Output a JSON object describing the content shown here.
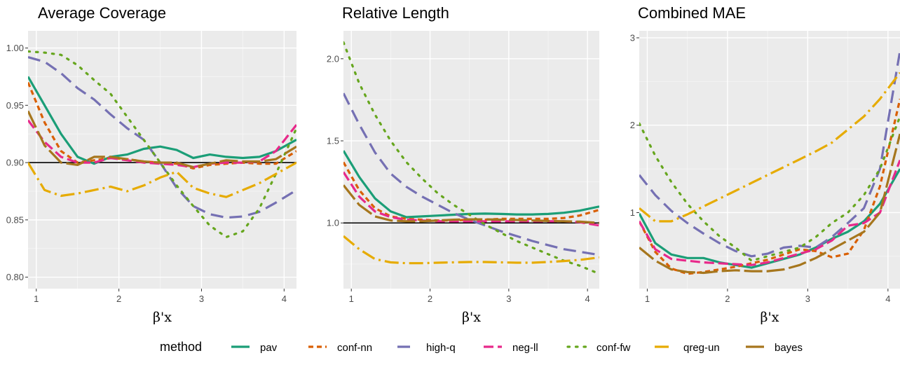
{
  "legend": {
    "title": "method",
    "position": "bottom"
  },
  "styles": {
    "pav": {
      "color": "#1b9e77",
      "dash": "none"
    },
    "conf-nn": {
      "color": "#d95f02",
      "dash": "7,5"
    },
    "high-q": {
      "color": "#7570b3",
      "dash": "18,9"
    },
    "neg-ll": {
      "color": "#e7298a",
      "dash": "14,6"
    },
    "conf-fw": {
      "color": "#66a61e",
      "dash": "2.5,9"
    },
    "qreg-un": {
      "color": "#e6ab02",
      "dash": "20,6,3,6"
    },
    "bayes": {
      "color": "#a6761d",
      "dash": "26,6"
    }
  },
  "chart_data": [
    {
      "type": "line",
      "title": "Average Coverage",
      "xlabel": "β'x",
      "ylabel": "",
      "xlim": [
        0.9,
        4.15
      ],
      "ylim": [
        0.79,
        1.015
      ],
      "xticks": [
        1,
        2,
        3,
        4
      ],
      "yticks": [
        0.8,
        0.85,
        0.9,
        0.95,
        1.0
      ],
      "ytick_labels": [
        "0.80",
        "0.85",
        "0.90",
        "0.95",
        "1.00"
      ],
      "hline": 0.9,
      "grid": true,
      "x": [
        0.9,
        1.1,
        1.3,
        1.5,
        1.7,
        1.9,
        2.1,
        2.3,
        2.5,
        2.7,
        2.9,
        3.1,
        3.3,
        3.5,
        3.7,
        3.9,
        4.15
      ],
      "series": [
        {
          "name": "pav",
          "values": [
            0.975,
            0.95,
            0.925,
            0.905,
            0.899,
            0.905,
            0.907,
            0.912,
            0.914,
            0.911,
            0.904,
            0.907,
            0.905,
            0.904,
            0.905,
            0.91,
            0.92
          ]
        },
        {
          "name": "conf-nn",
          "values": [
            0.97,
            0.935,
            0.91,
            0.9,
            0.902,
            0.904,
            0.903,
            0.901,
            0.9,
            0.899,
            0.895,
            0.898,
            0.899,
            0.9,
            0.899,
            0.899,
            0.91
          ]
        },
        {
          "name": "high-q",
          "values": [
            0.992,
            0.988,
            0.978,
            0.965,
            0.955,
            0.942,
            0.93,
            0.92,
            0.9,
            0.878,
            0.862,
            0.855,
            0.852,
            0.853,
            0.857,
            0.865,
            0.876
          ]
        },
        {
          "name": "neg-ll",
          "values": [
            0.937,
            0.918,
            0.905,
            0.9,
            0.9,
            0.904,
            0.902,
            0.9,
            0.899,
            0.898,
            0.896,
            0.899,
            0.9,
            0.9,
            0.901,
            0.91,
            0.933
          ]
        },
        {
          "name": "conf-fw",
          "values": [
            0.997,
            0.996,
            0.994,
            0.985,
            0.972,
            0.96,
            0.94,
            0.92,
            0.9,
            0.88,
            0.862,
            0.845,
            0.835,
            0.84,
            0.86,
            0.89,
            0.93
          ]
        },
        {
          "name": "qreg-un",
          "values": [
            0.9,
            0.876,
            0.871,
            0.873,
            0.876,
            0.879,
            0.875,
            0.88,
            0.887,
            0.892,
            0.878,
            0.873,
            0.87,
            0.876,
            0.882,
            0.89,
            0.9
          ]
        },
        {
          "name": "bayes",
          "values": [
            0.945,
            0.915,
            0.9,
            0.898,
            0.905,
            0.905,
            0.903,
            0.901,
            0.9,
            0.9,
            0.896,
            0.899,
            0.902,
            0.901,
            0.901,
            0.903,
            0.914
          ]
        }
      ]
    },
    {
      "type": "line",
      "title": "Relative Length",
      "xlabel": "β'x",
      "ylabel": "",
      "xlim": [
        0.9,
        4.15
      ],
      "ylim": [
        0.6,
        2.17
      ],
      "xticks": [
        1,
        2,
        3,
        4
      ],
      "yticks": [
        1.0,
        1.5,
        2.0
      ],
      "ytick_labels": [
        "1.0",
        "1.5",
        "2.0"
      ],
      "hline": 1.0,
      "grid": true,
      "x": [
        0.9,
        1.1,
        1.3,
        1.5,
        1.7,
        1.9,
        2.1,
        2.3,
        2.5,
        2.7,
        2.9,
        3.1,
        3.3,
        3.5,
        3.7,
        3.9,
        4.15
      ],
      "series": [
        {
          "name": "pav",
          "values": [
            1.44,
            1.28,
            1.15,
            1.07,
            1.035,
            1.04,
            1.045,
            1.05,
            1.055,
            1.057,
            1.055,
            1.052,
            1.052,
            1.055,
            1.062,
            1.075,
            1.1
          ]
        },
        {
          "name": "conf-nn",
          "values": [
            1.37,
            1.2,
            1.09,
            1.04,
            1.025,
            1.02,
            1.015,
            1.015,
            1.02,
            1.02,
            1.025,
            1.025,
            1.025,
            1.025,
            1.03,
            1.045,
            1.08
          ]
        },
        {
          "name": "high-q",
          "values": [
            1.79,
            1.6,
            1.43,
            1.3,
            1.22,
            1.16,
            1.11,
            1.06,
            1.02,
            0.985,
            0.95,
            0.92,
            0.89,
            0.865,
            0.84,
            0.825,
            0.805
          ]
        },
        {
          "name": "neg-ll",
          "values": [
            1.31,
            1.16,
            1.07,
            1.035,
            1.02,
            1.015,
            1.01,
            1.01,
            1.01,
            1.01,
            1.01,
            1.01,
            1.01,
            1.01,
            1.01,
            1.005,
            0.985
          ]
        },
        {
          "name": "conf-fw",
          "values": [
            2.1,
            1.85,
            1.66,
            1.5,
            1.37,
            1.27,
            1.18,
            1.11,
            1.05,
            0.99,
            0.94,
            0.89,
            0.85,
            0.81,
            0.77,
            0.74,
            0.69
          ]
        },
        {
          "name": "qreg-un",
          "values": [
            0.92,
            0.84,
            0.78,
            0.76,
            0.755,
            0.755,
            0.758,
            0.76,
            0.762,
            0.762,
            0.76,
            0.758,
            0.758,
            0.762,
            0.768,
            0.775,
            0.79
          ]
        },
        {
          "name": "bayes",
          "values": [
            1.23,
            1.11,
            1.04,
            1.015,
            1.01,
            1.01,
            1.015,
            1.02,
            1.022,
            1.022,
            1.02,
            1.018,
            1.015,
            1.012,
            1.01,
            1.008,
            1.0
          ]
        }
      ]
    },
    {
      "type": "line",
      "title": "Combined MAE",
      "xlabel": "β'x",
      "ylabel": "",
      "xlim": [
        0.9,
        4.15
      ],
      "ylim": [
        0.13,
        3.08
      ],
      "xticks": [
        1,
        2,
        3,
        4
      ],
      "yticks": [
        1,
        2,
        3
      ],
      "ytick_labels": [
        "1",
        "2",
        "3"
      ],
      "hline": null,
      "grid": true,
      "x": [
        0.9,
        1.1,
        1.3,
        1.5,
        1.7,
        1.9,
        2.1,
        2.3,
        2.5,
        2.7,
        2.9,
        3.1,
        3.3,
        3.5,
        3.7,
        3.9,
        4.15
      ],
      "series": [
        {
          "name": "pav",
          "values": [
            0.99,
            0.65,
            0.52,
            0.48,
            0.48,
            0.43,
            0.4,
            0.37,
            0.42,
            0.47,
            0.52,
            0.6,
            0.7,
            0.78,
            0.9,
            1.1,
            1.5
          ]
        },
        {
          "name": "conf-nn",
          "values": [
            0.9,
            0.55,
            0.36,
            0.3,
            0.32,
            0.35,
            0.38,
            0.42,
            0.46,
            0.52,
            0.58,
            0.56,
            0.49,
            0.53,
            0.8,
            1.3,
            2.3
          ]
        },
        {
          "name": "high-q",
          "values": [
            1.43,
            1.2,
            1.02,
            0.88,
            0.76,
            0.65,
            0.56,
            0.5,
            0.53,
            0.6,
            0.62,
            0.6,
            0.72,
            0.88,
            1.05,
            1.5,
            2.85
          ]
        },
        {
          "name": "neg-ll",
          "values": [
            0.9,
            0.58,
            0.47,
            0.45,
            0.43,
            0.42,
            0.41,
            0.4,
            0.43,
            0.48,
            0.53,
            0.58,
            0.68,
            0.85,
            0.88,
            1.0,
            1.6
          ]
        },
        {
          "name": "conf-fw",
          "values": [
            2.02,
            1.65,
            1.35,
            1.1,
            0.9,
            0.73,
            0.6,
            0.45,
            0.5,
            0.55,
            0.6,
            0.72,
            0.88,
            1.0,
            1.2,
            1.5,
            2.1
          ]
        },
        {
          "name": "qreg-un",
          "values": [
            1.05,
            0.9,
            0.9,
            0.98,
            1.07,
            1.16,
            1.25,
            1.34,
            1.43,
            1.52,
            1.61,
            1.7,
            1.8,
            1.95,
            2.1,
            2.3,
            2.6
          ]
        },
        {
          "name": "bayes",
          "values": [
            0.6,
            0.45,
            0.35,
            0.32,
            0.31,
            0.33,
            0.34,
            0.33,
            0.33,
            0.35,
            0.4,
            0.48,
            0.58,
            0.68,
            0.78,
            1.0,
            1.9
          ]
        }
      ]
    }
  ]
}
